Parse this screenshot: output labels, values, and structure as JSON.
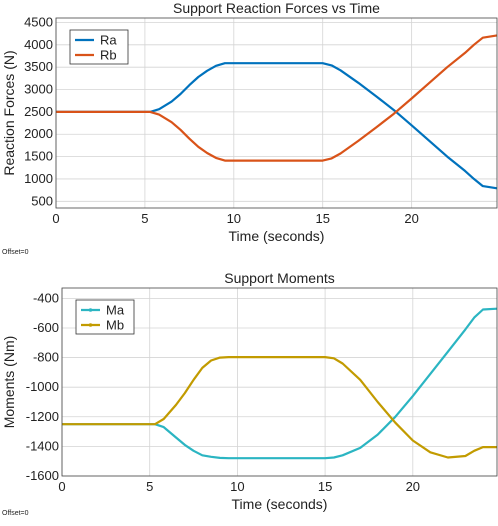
{
  "charts": [
    {
      "title": "Support Reaction Forces vs Time",
      "xlabel": "Time (seconds)",
      "ylabel": "Reaction Forces (N)",
      "offset_label": "Offset=0",
      "xlim": [
        0,
        24.8
      ],
      "ylim": [
        350,
        4600
      ],
      "xticks": [
        0,
        5,
        10,
        15,
        20
      ],
      "yticks": [
        500,
        1000,
        1500,
        2000,
        2500,
        3000,
        3500,
        4000,
        4500
      ],
      "legend": [
        "Ra",
        "Rb"
      ]
    },
    {
      "title": "Support Moments",
      "xlabel": "Time (seconds)",
      "ylabel": "Moments (Nm)",
      "offset_label": "Offset=0",
      "xlim": [
        0,
        24.8
      ],
      "ylim": [
        -1600,
        -330
      ],
      "xticks": [
        0,
        5,
        10,
        15,
        20
      ],
      "yticks": [
        -400,
        -600,
        -800,
        -1000,
        -1200,
        -1400,
        -1600
      ],
      "legend": [
        "Ma",
        "Mb"
      ]
    }
  ],
  "chart_data": [
    {
      "type": "line",
      "title": "Support Reaction Forces vs Time",
      "xlabel": "Time (seconds)",
      "ylabel": "Reaction Forces (N)",
      "xlim": [
        0,
        24.8
      ],
      "ylim": [
        350,
        4600
      ],
      "grid": true,
      "legend_position": "top-left",
      "series": [
        {
          "name": "Ra",
          "color": "#0072BD",
          "x": [
            0,
            5.3,
            5.8,
            6.5,
            7,
            7.5,
            8,
            8.5,
            9,
            9.5,
            15,
            15.5,
            16,
            17,
            18,
            19,
            20,
            21,
            22,
            23,
            23.5,
            24,
            24.8
          ],
          "y": [
            2500,
            2500,
            2560,
            2730,
            2900,
            3100,
            3280,
            3420,
            3530,
            3590,
            3590,
            3540,
            3430,
            3150,
            2850,
            2540,
            2200,
            1850,
            1500,
            1180,
            1000,
            840,
            790
          ]
        },
        {
          "name": "Rb",
          "color": "#D95319",
          "x": [
            0,
            5.3,
            5.8,
            6.5,
            7,
            7.5,
            8,
            8.5,
            9,
            9.5,
            15,
            15.5,
            16,
            17,
            18,
            19,
            20,
            21,
            22,
            23,
            23.5,
            24,
            24.8
          ],
          "y": [
            2500,
            2500,
            2440,
            2270,
            2100,
            1900,
            1720,
            1580,
            1470,
            1410,
            1410,
            1460,
            1570,
            1850,
            2150,
            2460,
            2800,
            3150,
            3500,
            3820,
            4000,
            4160,
            4210
          ]
        }
      ]
    },
    {
      "type": "line",
      "title": "Support Moments",
      "xlabel": "Time (seconds)",
      "ylabel": "Moments (Nm)",
      "xlim": [
        0,
        24.8
      ],
      "ylim": [
        -1600,
        -330
      ],
      "grid": true,
      "legend_position": "top-left",
      "series": [
        {
          "name": "Ma",
          "color": "#2BB5C2",
          "x": [
            0,
            5.3,
            5.8,
            6.5,
            7,
            7.5,
            8,
            8.5,
            9,
            9.5,
            15,
            15.5,
            16,
            17,
            18,
            19,
            20,
            21,
            22,
            23,
            23.5,
            24,
            24.8
          ],
          "y": [
            -1250,
            -1250,
            -1270,
            -1340,
            -1390,
            -1430,
            -1460,
            -1470,
            -1478,
            -1480,
            -1480,
            -1475,
            -1460,
            -1410,
            -1320,
            -1200,
            -1060,
            -910,
            -760,
            -610,
            -530,
            -475,
            -470
          ]
        },
        {
          "name": "Mb",
          "color": "#C29B00",
          "x": [
            0,
            5.3,
            5.8,
            6.5,
            7,
            7.5,
            8,
            8.5,
            9,
            9.5,
            15,
            15.5,
            16,
            17,
            18,
            19,
            20,
            21,
            22,
            23,
            23.5,
            24,
            24.8
          ],
          "y": [
            -1250,
            -1250,
            -1215,
            -1120,
            -1040,
            -950,
            -870,
            -820,
            -800,
            -797,
            -797,
            -805,
            -840,
            -950,
            -1100,
            -1240,
            -1360,
            -1440,
            -1475,
            -1465,
            -1430,
            -1405,
            -1405
          ]
        }
      ]
    }
  ]
}
